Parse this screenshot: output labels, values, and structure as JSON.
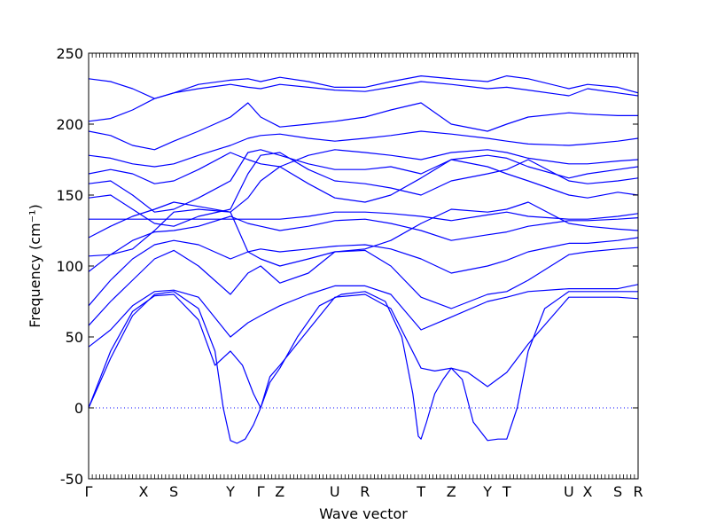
{
  "chart_data": {
    "type": "line",
    "xlabel": "Wave vector",
    "ylabel": "Frequency (cm⁻¹)",
    "ylim": [
      -50,
      250
    ],
    "yticks": [
      -50,
      0,
      50,
      100,
      150,
      200,
      250
    ],
    "x_range": [
      0,
      1
    ],
    "grid": false,
    "legend": "none",
    "line_color": "#0000ff",
    "zero_line": {
      "y": 0,
      "style": "dotted",
      "color": "#0000ff"
    },
    "high_symmetry_points": [
      {
        "label": "Γ",
        "x": 0.0
      },
      {
        "label": "X",
        "x": 0.1
      },
      {
        "label": "S",
        "x": 0.155
      },
      {
        "label": "Y",
        "x": 0.258
      },
      {
        "label": "Γ",
        "x": 0.313
      },
      {
        "label": "Z",
        "x": 0.348
      },
      {
        "label": "U",
        "x": 0.448
      },
      {
        "label": "R",
        "x": 0.503
      },
      {
        "label": "T",
        "x": 0.605
      },
      {
        "label": "Z",
        "x": 0.66
      },
      {
        "label": "Y",
        "x": 0.726
      },
      {
        "label": "T",
        "x": 0.761
      },
      {
        "label": "U",
        "x": 0.874
      },
      {
        "label": "X",
        "x": 0.908
      },
      {
        "label": "S",
        "x": 0.963
      },
      {
        "label": "R",
        "x": 1.0
      }
    ],
    "series": [
      {
        "x": [
          0.0,
          0.04,
          0.08,
          0.12,
          0.155,
          0.2,
          0.23,
          0.245,
          0.258,
          0.27,
          0.285,
          0.3,
          0.313,
          0.33,
          0.348,
          0.38,
          0.42,
          0.46,
          0.503,
          0.54,
          0.57,
          0.59,
          0.6,
          0.605,
          0.615,
          0.63,
          0.645,
          0.66,
          0.68,
          0.7,
          0.726,
          0.745,
          0.761,
          0.78,
          0.8,
          0.83,
          0.874,
          0.908,
          0.963,
          1.0
        ],
        "y": [
          0,
          35,
          65,
          80,
          82,
          70,
          40,
          0,
          -23,
          -25,
          -22,
          -12,
          0,
          18,
          28,
          50,
          72,
          80,
          82,
          75,
          50,
          10,
          -20,
          -22,
          -10,
          10,
          20,
          28,
          20,
          -10,
          -23,
          -22,
          -22,
          0,
          40,
          70,
          82,
          82,
          82,
          82
        ]
      },
      {
        "x": [
          0.0,
          0.04,
          0.08,
          0.12,
          0.155,
          0.2,
          0.23,
          0.258,
          0.28,
          0.3,
          0.313,
          0.33,
          0.348,
          0.4,
          0.448,
          0.503,
          0.55,
          0.605,
          0.63,
          0.66,
          0.69,
          0.726,
          0.761,
          0.8,
          0.874,
          0.908,
          0.963,
          1.0
        ],
        "y": [
          0,
          40,
          68,
          79,
          80,
          62,
          30,
          40,
          30,
          10,
          0,
          22,
          30,
          55,
          78,
          80,
          70,
          28,
          26,
          28,
          25,
          15,
          25,
          45,
          78,
          78,
          78,
          77
        ]
      },
      {
        "x": [
          0.0,
          0.04,
          0.08,
          0.12,
          0.155,
          0.2,
          0.258,
          0.29,
          0.313,
          0.348,
          0.4,
          0.448,
          0.503,
          0.55,
          0.605,
          0.66,
          0.726,
          0.761,
          0.8,
          0.874,
          0.908,
          0.963,
          1.0
        ],
        "y": [
          43,
          55,
          72,
          82,
          83,
          78,
          50,
          60,
          65,
          72,
          80,
          86,
          86,
          80,
          55,
          64,
          75,
          78,
          82,
          84,
          84,
          84,
          87
        ]
      },
      {
        "x": [
          0.0,
          0.04,
          0.08,
          0.12,
          0.155,
          0.2,
          0.258,
          0.29,
          0.313,
          0.348,
          0.4,
          0.448,
          0.503,
          0.55,
          0.605,
          0.66,
          0.726,
          0.761,
          0.8,
          0.874,
          0.908,
          0.963,
          1.0
        ],
        "y": [
          58,
          75,
          90,
          105,
          111,
          100,
          80,
          95,
          100,
          88,
          95,
          110,
          111,
          100,
          78,
          70,
          80,
          82,
          90,
          108,
          110,
          112,
          113
        ]
      },
      {
        "x": [
          0.0,
          0.04,
          0.08,
          0.12,
          0.155,
          0.2,
          0.258,
          0.29,
          0.313,
          0.348,
          0.4,
          0.448,
          0.503,
          0.55,
          0.605,
          0.66,
          0.726,
          0.761,
          0.8,
          0.874,
          0.908,
          0.963,
          1.0
        ],
        "y": [
          72,
          90,
          105,
          115,
          118,
          115,
          105,
          110,
          112,
          110,
          112,
          114,
          115,
          112,
          105,
          95,
          100,
          104,
          110,
          116,
          116,
          118,
          120
        ]
      },
      {
        "x": [
          0.0,
          0.04,
          0.08,
          0.12,
          0.155,
          0.2,
          0.258,
          0.29,
          0.313,
          0.348,
          0.4,
          0.448,
          0.503,
          0.55,
          0.605,
          0.66,
          0.726,
          0.761,
          0.8,
          0.874,
          0.908,
          0.963,
          1.0
        ],
        "y": [
          96,
          108,
          118,
          124,
          125,
          128,
          135,
          130,
          128,
          125,
          128,
          132,
          133,
          130,
          125,
          118,
          122,
          124,
          128,
          132,
          132,
          133,
          134
        ]
      },
      {
        "x": [
          0.0,
          0.05,
          0.1,
          0.155,
          0.2,
          0.258,
          0.313,
          0.348,
          0.4,
          0.448,
          0.503,
          0.55,
          0.605,
          0.66,
          0.726,
          0.761,
          0.8,
          0.874,
          0.908,
          0.963,
          1.0
        ],
        "y": [
          133,
          133,
          133,
          133,
          133,
          133,
          133,
          133,
          135,
          138,
          138,
          137,
          135,
          132,
          136,
          138,
          135,
          133,
          133,
          135,
          137
        ]
      },
      {
        "x": [
          0.0,
          0.04,
          0.08,
          0.12,
          0.155,
          0.2,
          0.258,
          0.29,
          0.313,
          0.348,
          0.4,
          0.448,
          0.503,
          0.55,
          0.605,
          0.66,
          0.726,
          0.761,
          0.8,
          0.874,
          0.908,
          0.963,
          1.0
        ],
        "y": [
          107,
          108,
          112,
          125,
          138,
          140,
          138,
          110,
          105,
          100,
          105,
          110,
          112,
          118,
          130,
          140,
          138,
          140,
          145,
          130,
          128,
          126,
          125
        ]
      },
      {
        "x": [
          0.0,
          0.04,
          0.08,
          0.12,
          0.155,
          0.2,
          0.258,
          0.29,
          0.313,
          0.348,
          0.4,
          0.448,
          0.503,
          0.55,
          0.605,
          0.66,
          0.726,
          0.761,
          0.8,
          0.874,
          0.908,
          0.963,
          1.0
        ],
        "y": [
          120,
          128,
          135,
          140,
          145,
          142,
          138,
          148,
          160,
          170,
          158,
          148,
          145,
          150,
          162,
          175,
          170,
          165,
          160,
          150,
          148,
          152,
          150
        ]
      },
      {
        "x": [
          0.0,
          0.04,
          0.08,
          0.12,
          0.155,
          0.2,
          0.258,
          0.29,
          0.313,
          0.348,
          0.4,
          0.448,
          0.503,
          0.55,
          0.605,
          0.66,
          0.726,
          0.761,
          0.8,
          0.874,
          0.908,
          0.963,
          1.0
        ],
        "y": [
          148,
          150,
          140,
          130,
          128,
          135,
          140,
          165,
          178,
          180,
          168,
          160,
          158,
          155,
          150,
          160,
          165,
          168,
          175,
          160,
          158,
          160,
          162
        ]
      },
      {
        "x": [
          0.0,
          0.04,
          0.08,
          0.12,
          0.155,
          0.2,
          0.258,
          0.29,
          0.313,
          0.348,
          0.4,
          0.448,
          0.503,
          0.55,
          0.605,
          0.66,
          0.726,
          0.761,
          0.8,
          0.874,
          0.908,
          0.963,
          1.0
        ],
        "y": [
          158,
          160,
          150,
          138,
          140,
          148,
          160,
          180,
          182,
          178,
          172,
          168,
          168,
          170,
          165,
          175,
          178,
          176,
          170,
          162,
          165,
          168,
          170
        ]
      },
      {
        "x": [
          0.0,
          0.04,
          0.08,
          0.12,
          0.155,
          0.2,
          0.258,
          0.29,
          0.313,
          0.348,
          0.4,
          0.448,
          0.503,
          0.55,
          0.605,
          0.66,
          0.726,
          0.761,
          0.8,
          0.874,
          0.908,
          0.963,
          1.0
        ],
        "y": [
          165,
          168,
          165,
          158,
          160,
          168,
          180,
          175,
          172,
          170,
          178,
          182,
          180,
          178,
          175,
          180,
          182,
          180,
          176,
          172,
          172,
          174,
          175
        ]
      },
      {
        "x": [
          0.0,
          0.04,
          0.08,
          0.12,
          0.155,
          0.2,
          0.258,
          0.29,
          0.313,
          0.348,
          0.4,
          0.448,
          0.503,
          0.55,
          0.605,
          0.66,
          0.726,
          0.761,
          0.8,
          0.874,
          0.908,
          0.963,
          1.0
        ],
        "y": [
          178,
          176,
          172,
          170,
          172,
          178,
          185,
          190,
          192,
          193,
          190,
          188,
          190,
          192,
          195,
          193,
          190,
          188,
          186,
          185,
          186,
          188,
          190
        ]
      },
      {
        "x": [
          0.0,
          0.04,
          0.08,
          0.12,
          0.155,
          0.2,
          0.258,
          0.29,
          0.313,
          0.348,
          0.4,
          0.448,
          0.503,
          0.55,
          0.605,
          0.66,
          0.726,
          0.761,
          0.8,
          0.874,
          0.908,
          0.963,
          1.0
        ],
        "y": [
          195,
          192,
          185,
          182,
          188,
          195,
          205,
          215,
          205,
          198,
          200,
          202,
          205,
          210,
          215,
          200,
          195,
          200,
          205,
          208,
          207,
          206,
          206
        ]
      },
      {
        "x": [
          0.0,
          0.04,
          0.08,
          0.12,
          0.155,
          0.2,
          0.258,
          0.29,
          0.313,
          0.348,
          0.4,
          0.448,
          0.503,
          0.55,
          0.605,
          0.66,
          0.726,
          0.761,
          0.8,
          0.874,
          0.908,
          0.963,
          1.0
        ],
        "y": [
          202,
          204,
          210,
          218,
          222,
          225,
          228,
          226,
          225,
          228,
          226,
          224,
          223,
          226,
          230,
          228,
          225,
          226,
          224,
          220,
          225,
          222,
          220
        ]
      },
      {
        "x": [
          0.0,
          0.04,
          0.08,
          0.12,
          0.155,
          0.2,
          0.258,
          0.29,
          0.313,
          0.348,
          0.4,
          0.448,
          0.503,
          0.55,
          0.605,
          0.66,
          0.726,
          0.761,
          0.8,
          0.874,
          0.908,
          0.963,
          1.0
        ],
        "y": [
          232,
          230,
          225,
          218,
          222,
          228,
          231,
          232,
          230,
          233,
          230,
          226,
          226,
          230,
          234,
          232,
          230,
          234,
          232,
          225,
          228,
          226,
          222
        ]
      }
    ]
  }
}
